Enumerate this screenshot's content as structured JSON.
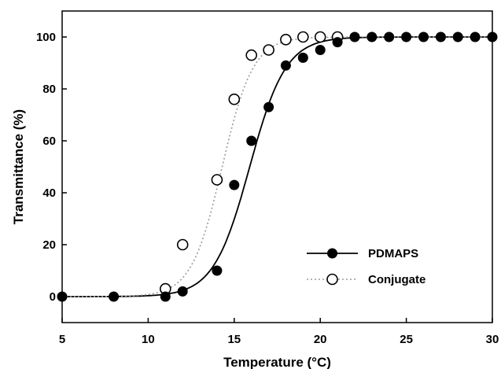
{
  "chart_data": {
    "type": "scatter",
    "xlabel": "Temperature (°C)",
    "ylabel": "Transmittance (%)",
    "xlim": [
      5,
      30
    ],
    "ylim": [
      -10,
      110
    ],
    "xticks": [
      5,
      10,
      15,
      20,
      25,
      30
    ],
    "yticks": [
      0,
      20,
      40,
      60,
      80,
      100
    ],
    "grid": false,
    "legend_position": "bottom-right",
    "series": [
      {
        "name": "PDMAPS",
        "marker": "filled-circle",
        "line": "solid",
        "color": "#000000",
        "x": [
          5,
          8,
          11,
          12,
          14,
          15,
          16,
          17,
          18,
          19,
          20,
          21,
          22,
          23,
          24,
          25,
          26,
          27,
          28,
          29,
          30
        ],
        "y": [
          0,
          0,
          0,
          2,
          10,
          43,
          60,
          73,
          89,
          92,
          95,
          98,
          100,
          100,
          100,
          100,
          100,
          100,
          100,
          100,
          100
        ],
        "fit_midpoint": 15.9,
        "fit_width": 1.05
      },
      {
        "name": "Conjugate",
        "marker": "open-circle",
        "line": "dotted",
        "color": "#000000",
        "x": [
          11,
          12,
          14,
          15,
          16,
          17,
          18,
          19,
          20,
          21
        ],
        "y": [
          3,
          20,
          45,
          76,
          93,
          95,
          99,
          100,
          100,
          100
        ],
        "fit_midpoint": 14.3,
        "fit_width": 0.9
      }
    ]
  }
}
